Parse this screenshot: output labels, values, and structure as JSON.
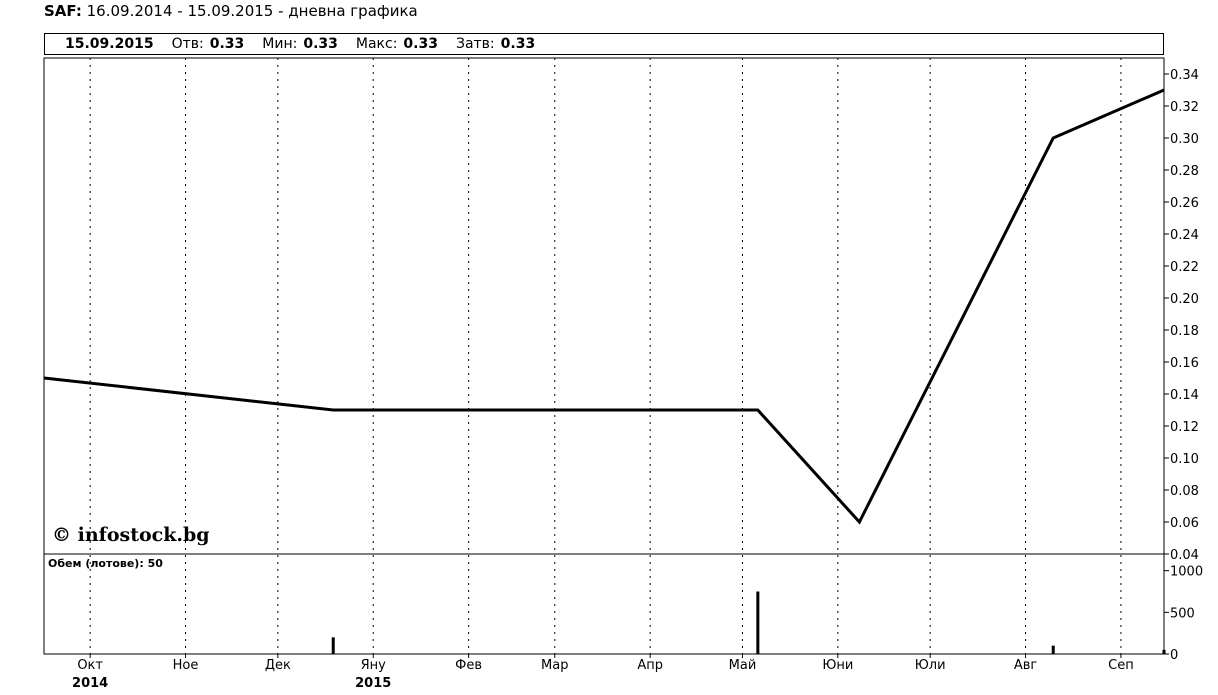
{
  "header": {
    "ticker": "SAF:",
    "period": "16.09.2014 - 15.09.2015 - дневна графика"
  },
  "infobar": {
    "date": "15.09.2015",
    "open_label": "Отв:",
    "open_value": "0.33",
    "min_label": "Мин:",
    "min_value": "0.33",
    "max_label": "Макс:",
    "max_value": "0.33",
    "close_label": "Затв:",
    "close_value": "0.33"
  },
  "watermark": "© infostock.bg",
  "volume_label": "Обем (лотове): 50",
  "chart_data": [
    {
      "type": "line",
      "ylim": [
        0.04,
        0.35
      ],
      "yticks": [
        "0.04",
        "0.06",
        "0.08",
        "0.10",
        "0.12",
        "0.14",
        "0.16",
        "0.18",
        "0.20",
        "0.22",
        "0.24",
        "0.26",
        "0.28",
        "0.30",
        "0.32",
        "0.34"
      ],
      "xticks": [
        {
          "label": "Окт",
          "year": "2014"
        },
        {
          "label": "Ное"
        },
        {
          "label": "Дек"
        },
        {
          "label": "Яну",
          "year": "2015"
        },
        {
          "label": "Фев"
        },
        {
          "label": "Мар"
        },
        {
          "label": "Апр"
        },
        {
          "label": "Май"
        },
        {
          "label": "Юни"
        },
        {
          "label": "Юли"
        },
        {
          "label": "Авг"
        },
        {
          "label": "Сеп"
        }
      ],
      "series": [
        {
          "x": [
            "2014-09-16",
            "2014-12-19",
            "2015-05-06",
            "2015-06-08",
            "2015-08-10",
            "2015-09-15"
          ],
          "y": [
            0.15,
            0.13,
            0.13,
            0.06,
            0.3,
            0.33
          ]
        }
      ]
    },
    {
      "type": "bar",
      "ylim": [
        0,
        1200
      ],
      "yticks": [
        "0",
        "500",
        "1000"
      ],
      "x": [
        "2014-12-19",
        "2015-05-06",
        "2015-08-10",
        "2015-09-15"
      ],
      "values": [
        200,
        750,
        100,
        50
      ]
    }
  ]
}
